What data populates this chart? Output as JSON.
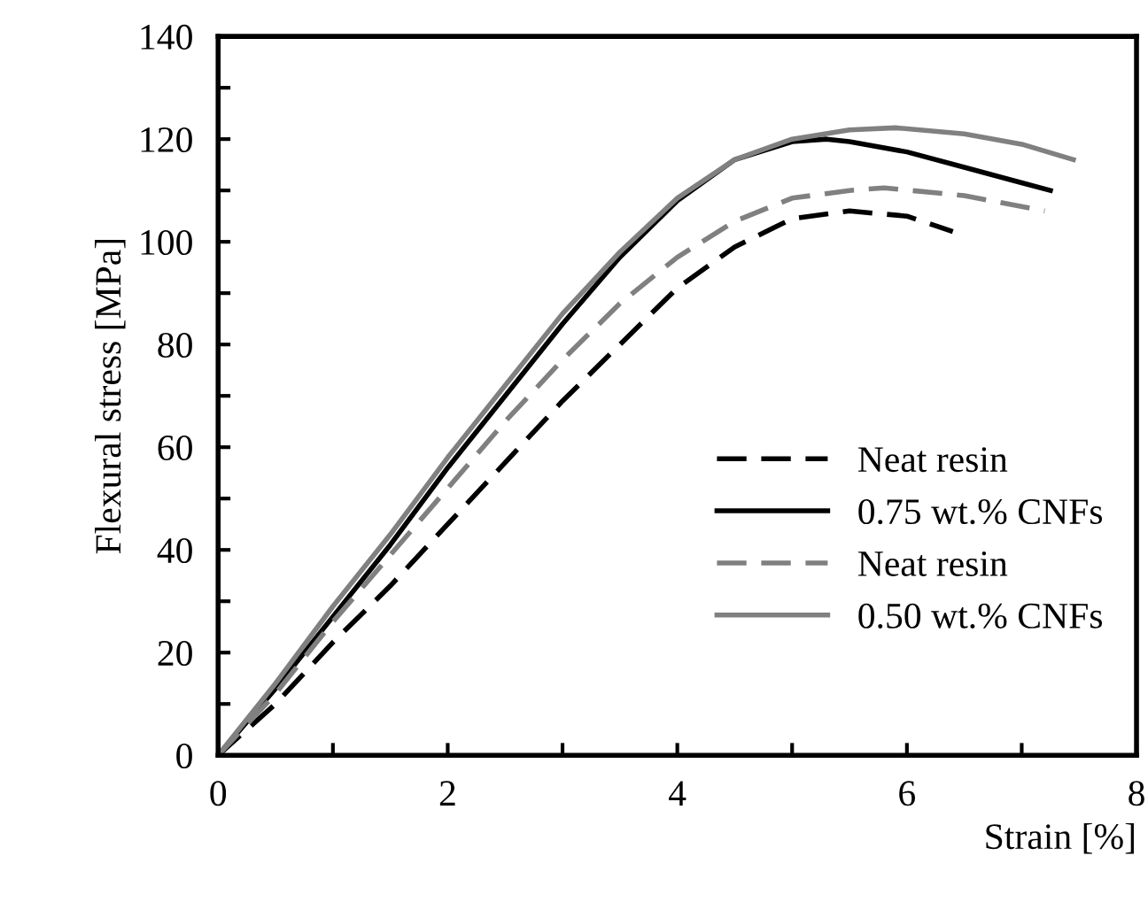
{
  "chart_data": {
    "type": "line",
    "xlabel": "Strain [%]",
    "ylabel": "Flexural stress [MPa]",
    "xlim": [
      0,
      8
    ],
    "ylim": [
      0,
      140
    ],
    "xticks": [
      0,
      {
        "value": 1,
        "label": null
      },
      2,
      {
        "value": 3,
        "label": null
      },
      4,
      {
        "value": 5,
        "label": null
      },
      6,
      {
        "value": 7,
        "label": null
      },
      8
    ],
    "yticks": [
      0,
      {
        "value": 10,
        "label": null
      },
      20,
      {
        "value": 30,
        "label": null
      },
      40,
      {
        "value": 50,
        "label": null
      },
      60,
      {
        "value": 70,
        "label": null
      },
      80,
      {
        "value": 90,
        "label": null
      },
      100,
      {
        "value": 110,
        "label": null
      },
      120,
      {
        "value": 130,
        "label": null
      },
      140
    ],
    "grid": false,
    "legend": "bottom right",
    "marker": "none",
    "series": [
      {
        "name": "Neat resin",
        "color": "#000000",
        "line_style": "dashed",
        "x": [
          0,
          0.5,
          1,
          1.5,
          2,
          2.5,
          3,
          3.5,
          4,
          4.5,
          5,
          5.5,
          6,
          6.4
        ],
        "values": [
          0,
          10,
          22,
          33,
          45,
          57,
          69,
          80,
          91,
          99,
          104.5,
          106,
          105,
          102
        ]
      },
      {
        "name": "0.75 wt.% CNFs",
        "color": "#000000",
        "line_style": "solid",
        "x": [
          0,
          0.5,
          1,
          1.5,
          2,
          2.5,
          3,
          3.5,
          4,
          4.5,
          5,
          5.3,
          5.5,
          6,
          6.5,
          7,
          7.25
        ],
        "values": [
          0,
          13,
          27,
          41,
          56,
          70,
          84,
          97,
          108,
          116,
          119.5,
          120,
          119.5,
          117.5,
          114.5,
          111.5,
          110
        ]
      },
      {
        "name": "Neat resin",
        "color": "#808080",
        "line_style": "dashed",
        "x": [
          0,
          0.5,
          1,
          1.5,
          2,
          2.5,
          3,
          3.5,
          4,
          4.5,
          5,
          5.5,
          5.8,
          6.5,
          7.2
        ],
        "values": [
          0,
          12,
          26,
          39,
          52,
          65,
          77,
          88,
          97,
          104,
          108.5,
          110,
          110.5,
          109,
          106
        ]
      },
      {
        "name": "0.50 wt.% CNFs",
        "color": "#808080",
        "line_style": "solid",
        "x": [
          0,
          0.5,
          1,
          1.5,
          2,
          2.5,
          3,
          3.5,
          4,
          4.5,
          5,
          5.5,
          5.9,
          6.5,
          7,
          7.45
        ],
        "values": [
          0,
          14,
          29,
          43,
          58,
          72,
          86,
          98,
          108.5,
          116,
          120,
          121.8,
          122.2,
          121,
          119,
          116
        ]
      }
    ]
  }
}
